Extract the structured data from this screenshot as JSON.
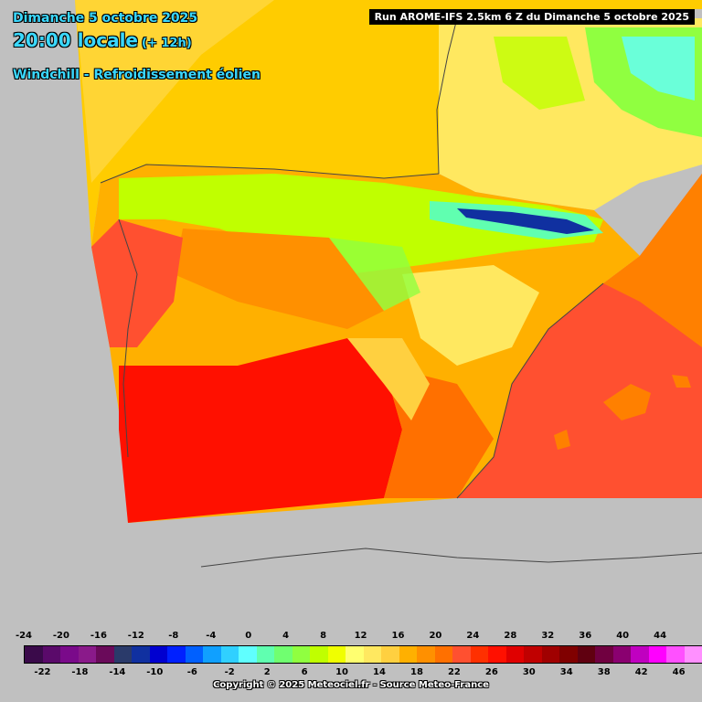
{
  "header": {
    "date": "Dimanche 5 octobre 2025",
    "time": "20:00 locale",
    "offset": "(+ 12h)",
    "parameter": "Windchill - Refroidissement éolien"
  },
  "run_label": "Run AROME-IFS 2.5km 6 Z du Dimanche 5 octobre 2025",
  "legend": {
    "labels_top": [
      "-24",
      "-20",
      "-16",
      "-12",
      "-8",
      "-4",
      "0",
      "4",
      "8",
      "12",
      "16",
      "20",
      "24",
      "28",
      "32",
      "36",
      "40",
      "44"
    ],
    "labels_bottom": [
      "-22",
      "-18",
      "-14",
      "-10",
      "-6",
      "-2",
      "2",
      "6",
      "10",
      "14",
      "18",
      "22",
      "26",
      "30",
      "34",
      "38",
      "42",
      "46"
    ],
    "colors": [
      "#3a0a4a",
      "#5a0a6a",
      "#7a0a8a",
      "#8a1a8a",
      "#6a0a5a",
      "#2a3a6a",
      "#1030a0",
      "#0000d0",
      "#0020ff",
      "#0060ff",
      "#10a0ff",
      "#30d0ff",
      "#60ffff",
      "#60ffb0",
      "#70ff70",
      "#90ff40",
      "#c0ff00",
      "#f0ff00",
      "#ffff70",
      "#ffe860",
      "#ffd040",
      "#ffb000",
      "#ff9000",
      "#ff7000",
      "#ff5030",
      "#ff3000",
      "#ff1000",
      "#e00000",
      "#c00000",
      "#a00000",
      "#800000",
      "#600010",
      "#700040",
      "#8a0070",
      "#c000c0",
      "#ff00ff",
      "#ff50ff",
      "#ff90ff"
    ]
  },
  "copyright": "Copyright © 2025 Meteociel.fr - Source Meteo-France",
  "map_colors": {
    "background": "#c0c0c0",
    "sea_warm": "#ff5030",
    "sea_mild": "#ff8000",
    "land_hot": "#ff1000",
    "land_warm": "#ff7000",
    "land_mild": "#ffb000",
    "land_cool": "#ffe860",
    "land_cold": "#c0ff00",
    "mountain": "#60ffb0",
    "peak": "#1030a0",
    "atlantic": "#ffcc00"
  }
}
